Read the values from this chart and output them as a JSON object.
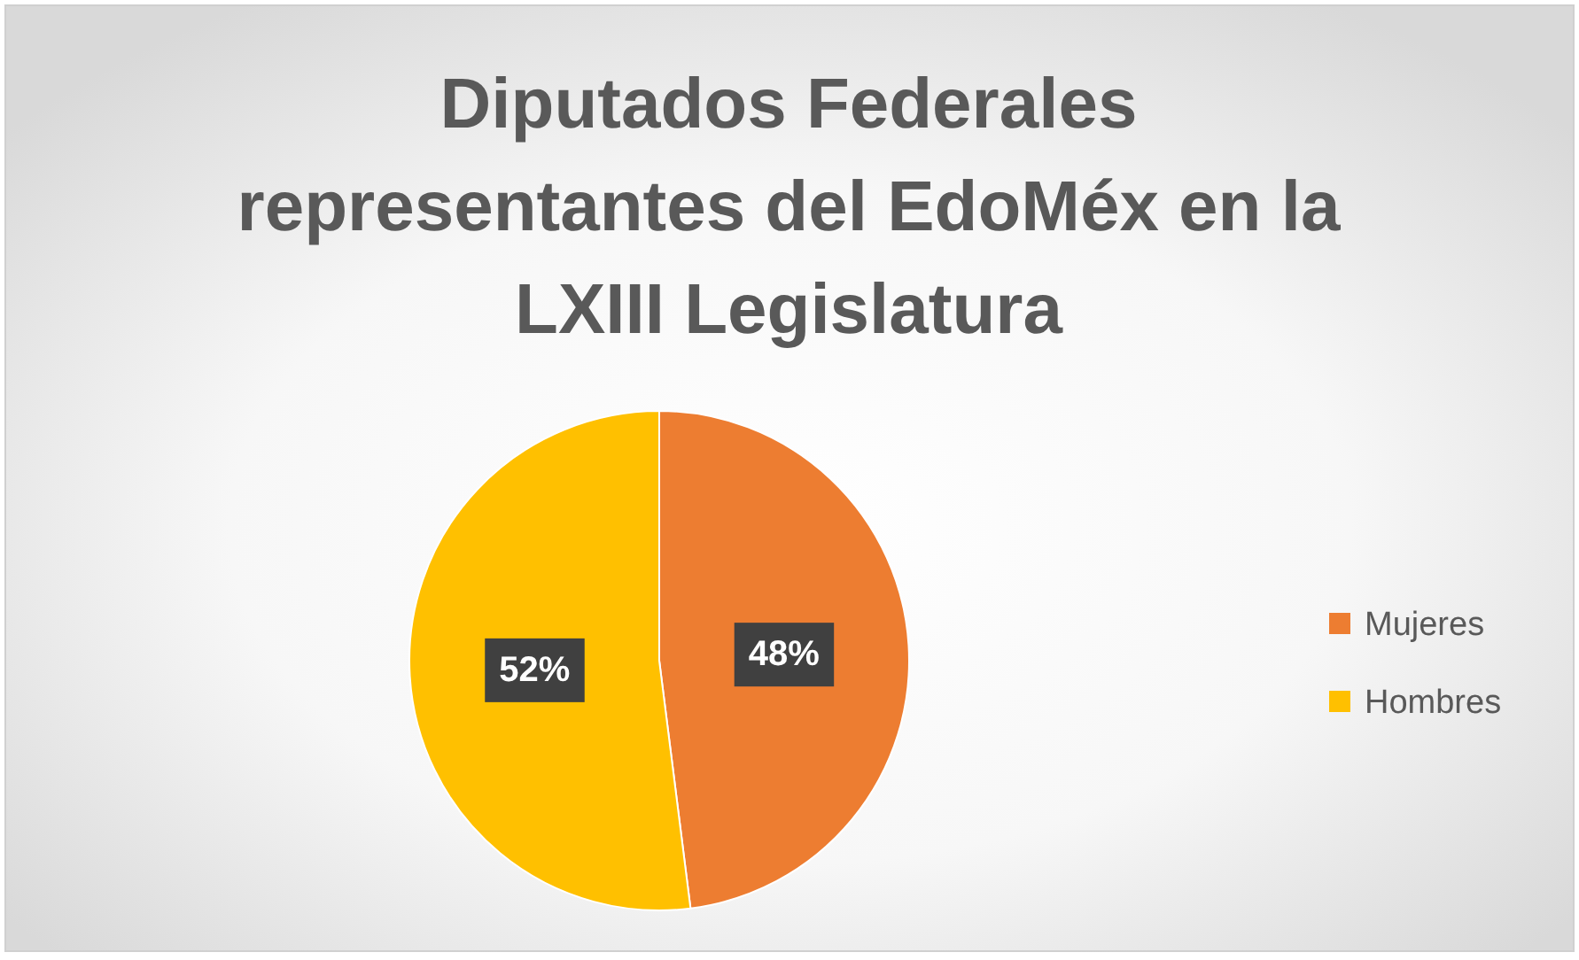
{
  "chart_data": {
    "type": "pie",
    "title": "Diputados Federales representantes del EdoMéx en la LXIII Legislatura",
    "categories": [
      "Mujeres",
      "Hombres"
    ],
    "values": [
      48,
      52
    ],
    "colors": [
      "#ed7d31",
      "#ffc000"
    ],
    "value_labels": [
      "48%",
      "52%"
    ],
    "legend": "right"
  }
}
